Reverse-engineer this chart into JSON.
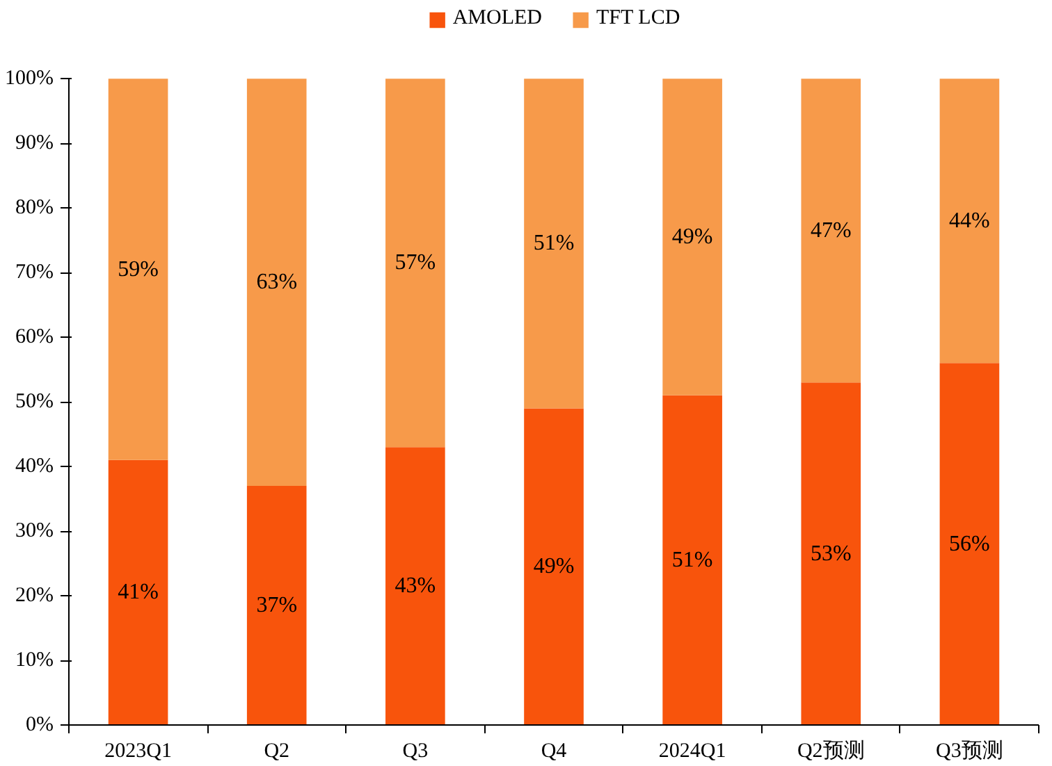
{
  "chart_data": {
    "type": "bar",
    "stacked": true,
    "categories": [
      "2023Q1",
      "Q2",
      "Q3",
      "Q4",
      "2024Q1",
      "Q2预测",
      "Q3预测"
    ],
    "series": [
      {
        "name": "AMOLED",
        "color": "#f8540c",
        "values": [
          41,
          37,
          43,
          49,
          51,
          53,
          56
        ],
        "value_labels": [
          "41%",
          "37%",
          "43%",
          "49%",
          "51%",
          "53%",
          "56%"
        ]
      },
      {
        "name": "TFT LCD",
        "color": "#f79a4a",
        "values": [
          59,
          63,
          57,
          51,
          49,
          47,
          44
        ],
        "value_labels": [
          "59%",
          "63%",
          "57%",
          "51%",
          "49%",
          "47%",
          "44%"
        ]
      }
    ],
    "ylim": [
      0,
      100
    ],
    "yticks": [
      {
        "value": 0,
        "label": "0%"
      },
      {
        "value": 10,
        "label": "10%"
      },
      {
        "value": 20,
        "label": "20%"
      },
      {
        "value": 30,
        "label": "30%"
      },
      {
        "value": 40,
        "label": "40%"
      },
      {
        "value": 50,
        "label": "50%"
      },
      {
        "value": 60,
        "label": "60%"
      },
      {
        "value": 70,
        "label": "70%"
      },
      {
        "value": 80,
        "label": "80%"
      },
      {
        "value": 90,
        "label": "90%"
      },
      {
        "value": 100,
        "label": "100%"
      }
    ],
    "legend": "top",
    "grid": false
  }
}
